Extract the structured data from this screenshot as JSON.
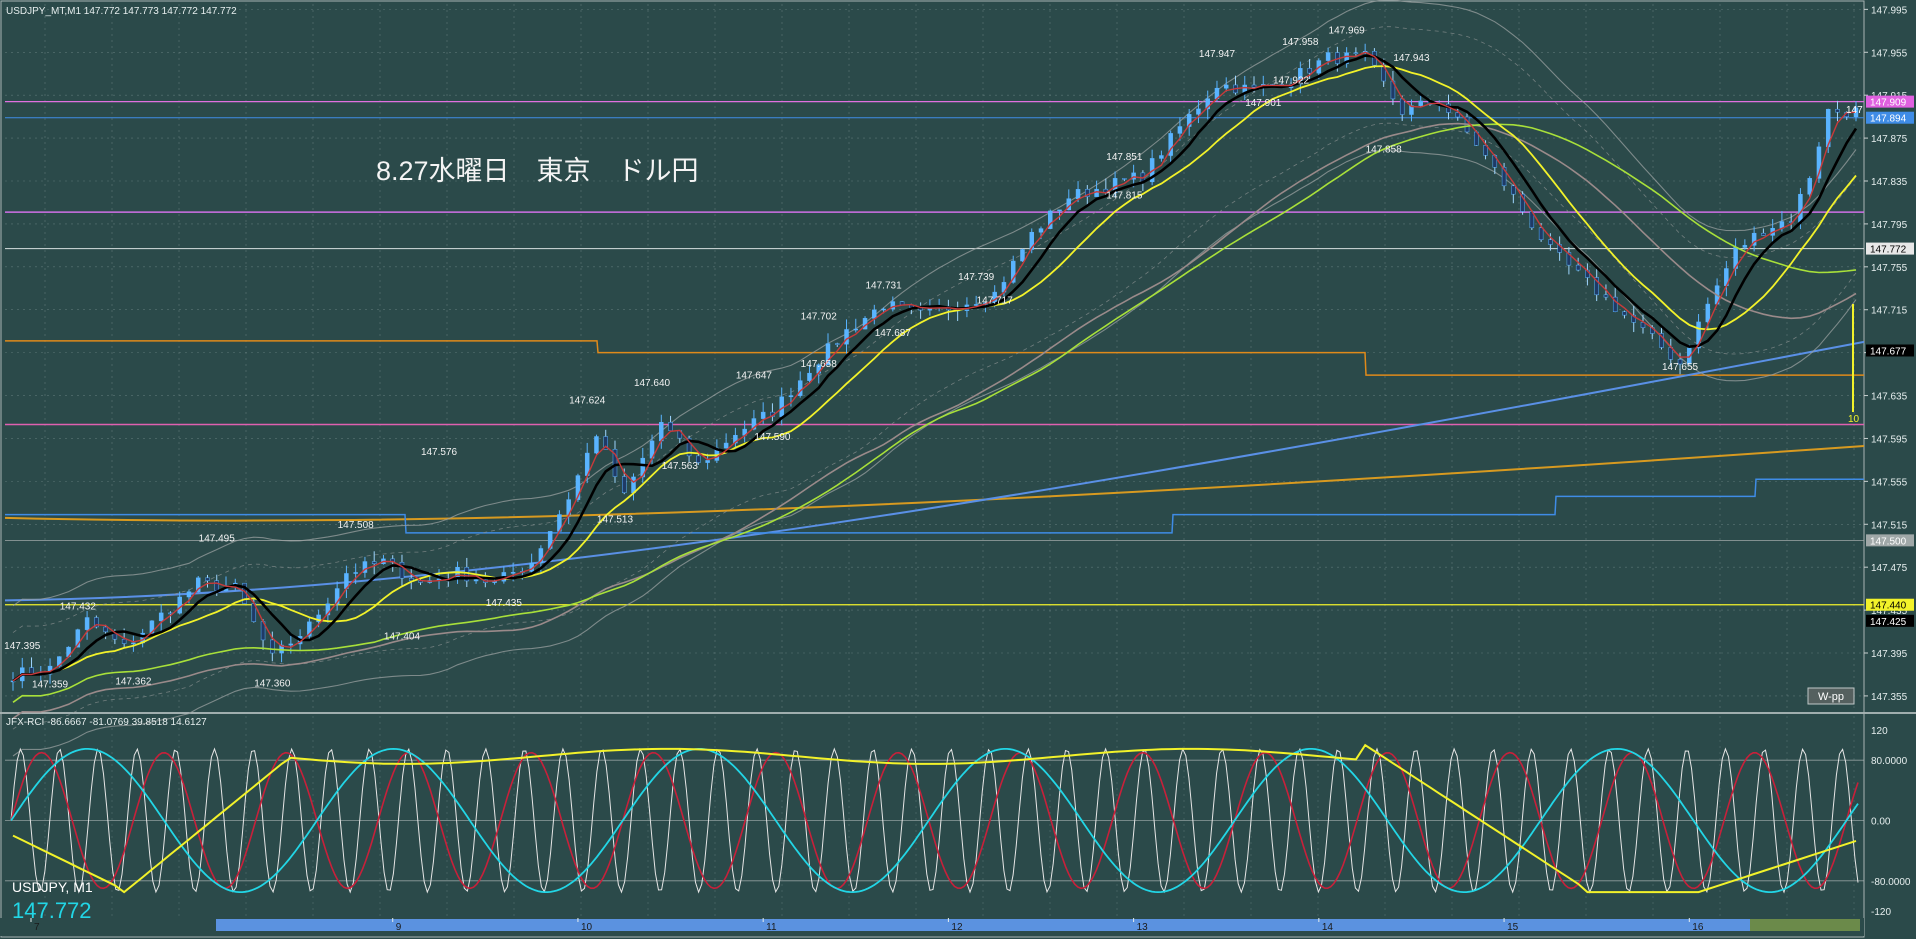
{
  "window": {
    "title": "USDJPY_MT,M1  147.772 147.773 147.772 147.772",
    "overlay_caption": "8.27水曜日　東京　ドル円",
    "corner_symbol": "USDJPY, M1",
    "corner_price": "147.772",
    "wpp_button": "W-pp"
  },
  "colors": {
    "background": "#2b4a4a",
    "grid": "#7c9393",
    "candle_up": "#5ab4ff",
    "candle_down": "#1f3a66",
    "ma_black": "#000000",
    "ma_red": "#c83a3a",
    "ma_yellow": "#f2f22a",
    "ma_lime": "#a8e03a",
    "ma_gray": "#9a8a8a",
    "orange": "#e08a1a",
    "blue_line": "#3f8ce6",
    "magenta": "#e060b0",
    "cyan_rci": "#22d6e6",
    "yellow_rci": "#f2f22a",
    "red_rci": "#c8203a",
    "white_rci": "#e6e6e6"
  },
  "price_axis": {
    "labels": [
      "147.995",
      "147.955",
      "147.915",
      "147.875",
      "147.835",
      "147.795",
      "147.755",
      "147.715",
      "147.675",
      "147.635",
      "147.595",
      "147.555",
      "147.515",
      "147.475",
      "147.435",
      "147.395",
      "147.355"
    ],
    "marker_values": [
      147.995,
      147.955,
      147.915,
      147.875,
      147.835,
      147.795,
      147.755,
      147.715,
      147.675,
      147.635,
      147.595,
      147.555,
      147.515,
      147.475,
      147.435,
      147.395,
      147.355
    ],
    "badges": [
      {
        "text": "147.909",
        "value": 147.909,
        "bg": "#e060e0"
      },
      {
        "text": "147.894",
        "value": 147.894,
        "bg": "#3f8ce6"
      },
      {
        "text": "147.772",
        "value": 147.772,
        "bg": "#e8e8e8"
      },
      {
        "text": "147.677",
        "value": 147.677,
        "bg": "#000000"
      },
      {
        "text": "147.500",
        "value": 147.5,
        "bg": "#a0a8a8"
      },
      {
        "text": "147.440",
        "value": 147.44,
        "bg": "#f2f22a"
      },
      {
        "text": "147.425",
        "value": 147.425,
        "bg": "#000000"
      }
    ],
    "top_right_label": "147"
  },
  "time_axis": {
    "labels": [
      "7",
      "9",
      "10",
      "11",
      "12",
      "13",
      "14",
      "15",
      "16"
    ],
    "indices": [
      0,
      41,
      61,
      81,
      101,
      121,
      141,
      161,
      181
    ]
  },
  "peak_labels": [
    {
      "text": "147.395",
      "value": 147.395,
      "i": 1
    },
    {
      "text": "147.359",
      "value": 147.359,
      "i": 4
    },
    {
      "text": "147.432",
      "value": 147.432,
      "i": 7
    },
    {
      "text": "147.362",
      "value": 147.362,
      "i": 13
    },
    {
      "text": "147.495",
      "value": 147.495,
      "i": 22
    },
    {
      "text": "147.360",
      "value": 147.36,
      "i": 28
    },
    {
      "text": "147.508",
      "value": 147.508,
      "i": 37
    },
    {
      "text": "147.576",
      "value": 147.576,
      "i": 46
    },
    {
      "text": "147.404",
      "value": 147.404,
      "i": 42
    },
    {
      "text": "147.435",
      "value": 147.435,
      "i": 53
    },
    {
      "text": "147.624",
      "value": 147.624,
      "i": 62
    },
    {
      "text": "147.513",
      "value": 147.513,
      "i": 65
    },
    {
      "text": "147.640",
      "value": 147.64,
      "i": 69
    },
    {
      "text": "147.563",
      "value": 147.563,
      "i": 72
    },
    {
      "text": "147.590",
      "value": 147.59,
      "i": 82
    },
    {
      "text": "147.647",
      "value": 147.647,
      "i": 80
    },
    {
      "text": "147.658",
      "value": 147.658,
      "i": 87
    },
    {
      "text": "147.702",
      "value": 147.702,
      "i": 87
    },
    {
      "text": "147.731",
      "value": 147.731,
      "i": 94
    },
    {
      "text": "147.687",
      "value": 147.687,
      "i": 95
    },
    {
      "text": "147.739",
      "value": 147.739,
      "i": 104
    },
    {
      "text": "147.717",
      "value": 147.717,
      "i": 106
    },
    {
      "text": "147.851",
      "value": 147.851,
      "i": 120
    },
    {
      "text": "147.815",
      "value": 147.815,
      "i": 120
    },
    {
      "text": "147.947",
      "value": 147.947,
      "i": 130
    },
    {
      "text": "147.901",
      "value": 147.901,
      "i": 135
    },
    {
      "text": "147.958",
      "value": 147.958,
      "i": 139
    },
    {
      "text": "147.922",
      "value": 147.922,
      "i": 138
    },
    {
      "text": "147.969",
      "value": 147.969,
      "i": 144
    },
    {
      "text": "147.943",
      "value": 147.943,
      "i": 151
    },
    {
      "text": "147.858",
      "value": 147.858,
      "i": 148
    },
    {
      "text": "147.655",
      "value": 147.655,
      "i": 180
    }
  ],
  "indicator": {
    "title": "JFX-RCI -86.6667 -81.0769 39.8518 14.6127",
    "axis_labels": [
      "120",
      "80.0000",
      "0.00",
      "-80.0000",
      "-120"
    ],
    "axis_values": [
      120,
      80,
      0,
      -80,
      -120
    ],
    "marker_label": "10"
  },
  "chart_data": {
    "type": "line",
    "title": "",
    "x_note": "minute bars, hour labels 7..16",
    "ylim": [
      147.34,
      148.0
    ],
    "close_anchors": [
      [
        0,
        147.375
      ],
      [
        4,
        147.38
      ],
      [
        8,
        147.425
      ],
      [
        12,
        147.4
      ],
      [
        16,
        147.43
      ],
      [
        20,
        147.46
      ],
      [
        24,
        147.455
      ],
      [
        28,
        147.39
      ],
      [
        32,
        147.42
      ],
      [
        36,
        147.47
      ],
      [
        40,
        147.48
      ],
      [
        44,
        147.46
      ],
      [
        48,
        147.47
      ],
      [
        52,
        147.46
      ],
      [
        56,
        147.48
      ],
      [
        60,
        147.54
      ],
      [
        63,
        147.6
      ],
      [
        66,
        147.54
      ],
      [
        70,
        147.61
      ],
      [
        74,
        147.57
      ],
      [
        78,
        147.6
      ],
      [
        82,
        147.62
      ],
      [
        86,
        147.66
      ],
      [
        90,
        147.695
      ],
      [
        94,
        147.72
      ],
      [
        98,
        147.71
      ],
      [
        102,
        147.72
      ],
      [
        106,
        147.73
      ],
      [
        110,
        147.785
      ],
      [
        114,
        147.82
      ],
      [
        118,
        147.83
      ],
      [
        122,
        147.84
      ],
      [
        126,
        147.885
      ],
      [
        130,
        147.925
      ],
      [
        134,
        147.92
      ],
      [
        138,
        147.93
      ],
      [
        142,
        147.95
      ],
      [
        146,
        147.95
      ],
      [
        150,
        147.9
      ],
      [
        154,
        147.91
      ],
      [
        158,
        147.87
      ],
      [
        162,
        147.82
      ],
      [
        166,
        147.77
      ],
      [
        170,
        147.74
      ],
      [
        174,
        147.71
      ],
      [
        178,
        147.68
      ],
      [
        180,
        147.665
      ],
      [
        183,
        147.72
      ],
      [
        186,
        147.77
      ],
      [
        189,
        147.79
      ],
      [
        192,
        147.8
      ],
      [
        194,
        147.84
      ],
      [
        196,
        147.9
      ]
    ]
  }
}
